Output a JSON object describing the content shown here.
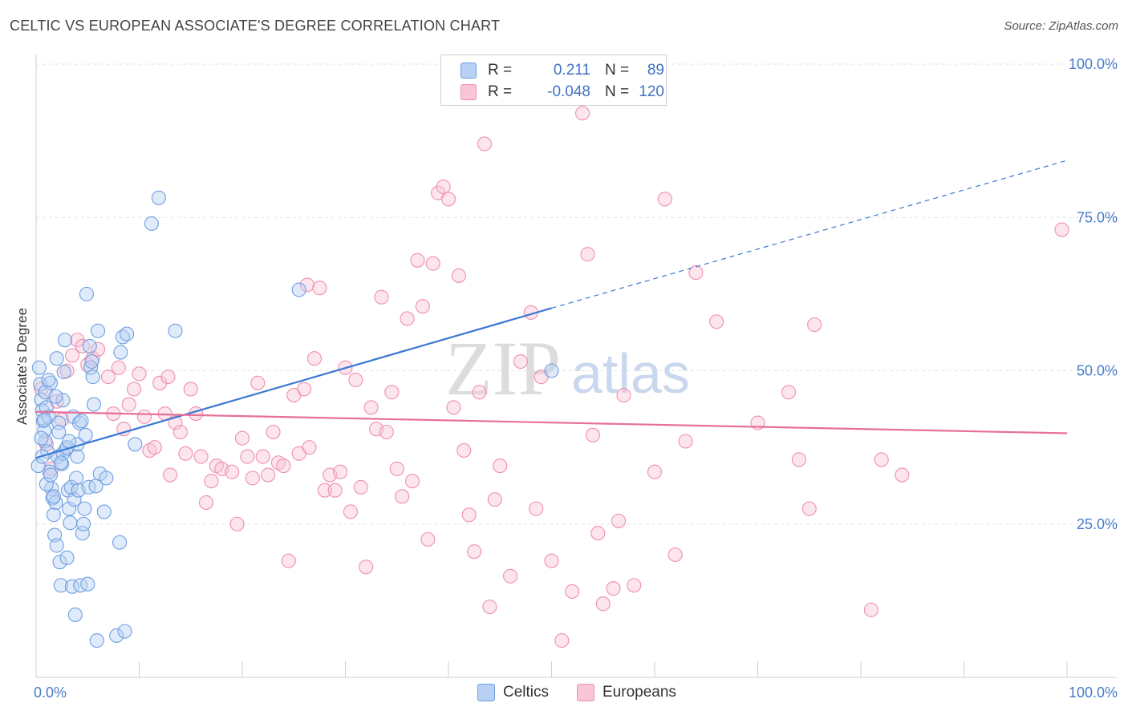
{
  "header": {
    "title": "CELTIC VS EUROPEAN ASSOCIATE'S DEGREE CORRELATION CHART",
    "source": "Source: ZipAtlas.com"
  },
  "watermark": {
    "zip": "ZIP",
    "atlas": "atlas"
  },
  "legend": {
    "rows": [
      {
        "r_label": "R =",
        "r_value": "0.211",
        "n_label": "N =",
        "n_value": "89",
        "color": "#6f9fe0",
        "fill": "#b8d0f3"
      },
      {
        "r_label": "R =",
        "r_value": "-0.048",
        "n_label": "N =",
        "n_value": "120",
        "color": "#ee8fb0",
        "fill": "#f8c6d7"
      }
    ]
  },
  "bottom_legend": [
    {
      "label": "Celtics",
      "color": "#6f9fe0",
      "fill": "#b8d0f3"
    },
    {
      "label": "Europeans",
      "color": "#ee8fb0",
      "fill": "#f8c6d7"
    }
  ],
  "chart_data": {
    "type": "scatter",
    "title": "CELTIC VS EUROPEAN ASSOCIATE'S DEGREE CORRELATION CHART",
    "xlabel": "",
    "ylabel": "Associate's Degree",
    "xlim": [
      0,
      100
    ],
    "ylim": [
      0,
      100
    ],
    "x_tick_labels": [
      "0.0%",
      "100.0%"
    ],
    "y_ticks": [
      25,
      50,
      75,
      100
    ],
    "y_tick_labels": [
      "25.0%",
      "50.0%",
      "75.0%",
      "100.0%"
    ],
    "grid": true,
    "colors": {
      "celtics": "#3a78d4",
      "europeans": "#e86f99"
    },
    "series": [
      {
        "name": "Celtics",
        "r": 0.211,
        "n": 89,
        "trend": {
          "x0": 0,
          "y0": 35.8,
          "x1": 50,
          "y1": 60.2,
          "dash_to_x": 100,
          "dash_to_y": 84.3
        },
        "points": [
          [
            0.3,
            50.5
          ],
          [
            0.4,
            47.8
          ],
          [
            0.5,
            45.3
          ],
          [
            0.6,
            43.5
          ],
          [
            0.7,
            41.8
          ],
          [
            0.8,
            40.2
          ],
          [
            0.9,
            38.5
          ],
          [
            1.0,
            44.0
          ],
          [
            1.1,
            36.8
          ],
          [
            1.2,
            42.5
          ],
          [
            1.3,
            33.5
          ],
          [
            1.4,
            48.0
          ],
          [
            1.5,
            30.8
          ],
          [
            1.6,
            29.2
          ],
          [
            1.7,
            26.5
          ],
          [
            1.8,
            23.2
          ],
          [
            1.9,
            28.5
          ],
          [
            2.0,
            52.0
          ],
          [
            2.1,
            36.0
          ],
          [
            2.2,
            41.5
          ],
          [
            2.3,
            18.8
          ],
          [
            2.4,
            15.0
          ],
          [
            2.5,
            34.8
          ],
          [
            2.6,
            45.2
          ],
          [
            2.7,
            49.8
          ],
          [
            2.8,
            55.0
          ],
          [
            2.9,
            37.2
          ],
          [
            3.0,
            19.5
          ],
          [
            3.1,
            30.5
          ],
          [
            3.2,
            27.5
          ],
          [
            3.3,
            25.2
          ],
          [
            3.4,
            31.0
          ],
          [
            3.5,
            14.8
          ],
          [
            3.6,
            42.5
          ],
          [
            3.7,
            29.0
          ],
          [
            3.8,
            10.2
          ],
          [
            3.9,
            32.5
          ],
          [
            4.0,
            38.0
          ],
          [
            4.1,
            30.5
          ],
          [
            4.2,
            41.5
          ],
          [
            4.3,
            15.0
          ],
          [
            4.4,
            41.8
          ],
          [
            4.5,
            23.5
          ],
          [
            4.6,
            25.0
          ],
          [
            4.7,
            27.5
          ],
          [
            4.8,
            39.5
          ],
          [
            4.9,
            62.5
          ],
          [
            5.0,
            15.2
          ],
          [
            5.1,
            31.0
          ],
          [
            5.2,
            54.0
          ],
          [
            5.3,
            50.5
          ],
          [
            5.4,
            51.5
          ],
          [
            5.5,
            49.0
          ],
          [
            5.6,
            44.5
          ],
          [
            5.8,
            31.2
          ],
          [
            5.9,
            6.0
          ],
          [
            6.0,
            56.5
          ],
          [
            6.2,
            33.2
          ],
          [
            6.6,
            27.0
          ],
          [
            6.8,
            32.5
          ],
          [
            7.8,
            6.8
          ],
          [
            8.1,
            22.0
          ],
          [
            8.2,
            53.0
          ],
          [
            8.4,
            55.5
          ],
          [
            8.6,
            7.5
          ],
          [
            8.8,
            56.0
          ],
          [
            9.6,
            38.0
          ],
          [
            11.2,
            74.0
          ],
          [
            11.9,
            78.2
          ],
          [
            13.5,
            56.5
          ],
          [
            25.5,
            63.2
          ],
          [
            50.0,
            50.0
          ],
          [
            0.2,
            34.5
          ],
          [
            1.0,
            31.5
          ],
          [
            2.0,
            21.5
          ],
          [
            0.6,
            36.0
          ],
          [
            1.4,
            33.0
          ],
          [
            2.6,
            36.5
          ],
          [
            0.9,
            46.5
          ],
          [
            1.2,
            48.5
          ],
          [
            0.5,
            39.0
          ],
          [
            3.0,
            37.5
          ],
          [
            1.7,
            29.5
          ],
          [
            2.2,
            40.0
          ],
          [
            0.8,
            42.0
          ],
          [
            1.9,
            45.8
          ],
          [
            2.4,
            35.0
          ],
          [
            3.2,
            38.5
          ],
          [
            4.0,
            36.0
          ]
        ]
      },
      {
        "name": "Europeans",
        "r": -0.048,
        "n": 120,
        "trend": {
          "x0": 0,
          "y0": 43.3,
          "x1": 100,
          "y1": 39.8
        },
        "points": [
          [
            0.5,
            47.0
          ],
          [
            1.0,
            38.0
          ],
          [
            1.5,
            34.0
          ],
          [
            2.0,
            45.0
          ],
          [
            2.5,
            42.0
          ],
          [
            3.0,
            50.0
          ],
          [
            3.5,
            52.5
          ],
          [
            4.0,
            55.0
          ],
          [
            4.5,
            54.0
          ],
          [
            5.0,
            51.0
          ],
          [
            5.5,
            52.0
          ],
          [
            6.0,
            53.5
          ],
          [
            7.0,
            49.0
          ],
          [
            7.5,
            43.0
          ],
          [
            8.0,
            50.5
          ],
          [
            8.5,
            40.5
          ],
          [
            9.0,
            44.5
          ],
          [
            9.5,
            47.0
          ],
          [
            10.0,
            49.5
          ],
          [
            10.5,
            42.5
          ],
          [
            11.0,
            37.0
          ],
          [
            11.5,
            37.5
          ],
          [
            12.0,
            48.0
          ],
          [
            12.5,
            43.0
          ],
          [
            12.8,
            49.0
          ],
          [
            13.0,
            33.0
          ],
          [
            13.5,
            41.5
          ],
          [
            14.0,
            40.0
          ],
          [
            14.5,
            36.5
          ],
          [
            15.0,
            47.0
          ],
          [
            15.5,
            43.0
          ],
          [
            16.0,
            36.0
          ],
          [
            16.5,
            28.5
          ],
          [
            17.0,
            32.0
          ],
          [
            17.5,
            34.5
          ],
          [
            18.0,
            34.0
          ],
          [
            19.0,
            33.5
          ],
          [
            19.5,
            25.0
          ],
          [
            20.0,
            39.0
          ],
          [
            20.5,
            36.0
          ],
          [
            21.0,
            32.5
          ],
          [
            21.5,
            48.0
          ],
          [
            22.0,
            36.0
          ],
          [
            22.5,
            33.0
          ],
          [
            23.0,
            40.0
          ],
          [
            23.5,
            35.0
          ],
          [
            24.0,
            34.5
          ],
          [
            24.5,
            19.0
          ],
          [
            25.0,
            46.0
          ],
          [
            25.5,
            36.5
          ],
          [
            26.0,
            47.0
          ],
          [
            26.3,
            64.0
          ],
          [
            26.5,
            37.5
          ],
          [
            27.0,
            52.0
          ],
          [
            27.5,
            63.5
          ],
          [
            28.0,
            30.5
          ],
          [
            28.5,
            33.0
          ],
          [
            29.0,
            30.5
          ],
          [
            29.5,
            33.5
          ],
          [
            30.0,
            50.5
          ],
          [
            30.5,
            27.0
          ],
          [
            31.0,
            48.5
          ],
          [
            31.5,
            31.0
          ],
          [
            32.0,
            18.0
          ],
          [
            32.5,
            44.0
          ],
          [
            33.0,
            40.5
          ],
          [
            33.5,
            62.0
          ],
          [
            34.0,
            40.0
          ],
          [
            34.5,
            46.5
          ],
          [
            35.0,
            34.0
          ],
          [
            35.5,
            29.5
          ],
          [
            36.0,
            58.5
          ],
          [
            36.5,
            32.0
          ],
          [
            37.0,
            68.0
          ],
          [
            37.5,
            60.5
          ],
          [
            38.0,
            22.5
          ],
          [
            38.5,
            67.5
          ],
          [
            39.0,
            79.0
          ],
          [
            39.5,
            80.0
          ],
          [
            40.0,
            78.0
          ],
          [
            40.5,
            44.0
          ],
          [
            41.0,
            65.5
          ],
          [
            41.5,
            37.0
          ],
          [
            42.0,
            26.5
          ],
          [
            42.5,
            20.5
          ],
          [
            43.0,
            46.5
          ],
          [
            43.5,
            87.0
          ],
          [
            44.0,
            11.5
          ],
          [
            44.5,
            29.0
          ],
          [
            45.0,
            34.5
          ],
          [
            46.0,
            16.5
          ],
          [
            47.0,
            51.5
          ],
          [
            48.0,
            59.5
          ],
          [
            48.5,
            27.5
          ],
          [
            49.0,
            49.0
          ],
          [
            50.0,
            19.0
          ],
          [
            51.0,
            6.0
          ],
          [
            52.0,
            14.0
          ],
          [
            53.0,
            92.0
          ],
          [
            53.5,
            69.0
          ],
          [
            54.0,
            39.5
          ],
          [
            54.5,
            23.5
          ],
          [
            55.0,
            12.0
          ],
          [
            56.0,
            14.5
          ],
          [
            56.5,
            25.5
          ],
          [
            57.0,
            46.0
          ],
          [
            58.0,
            15.0
          ],
          [
            60.0,
            33.5
          ],
          [
            61.0,
            78.0
          ],
          [
            62.0,
            20.0
          ],
          [
            63.0,
            38.5
          ],
          [
            64.0,
            66.0
          ],
          [
            66.0,
            58.0
          ],
          [
            70.0,
            41.5
          ],
          [
            73.0,
            46.5
          ],
          [
            74.0,
            35.5
          ],
          [
            75.0,
            27.5
          ],
          [
            75.5,
            57.5
          ],
          [
            81.0,
            11.0
          ],
          [
            82.0,
            35.5
          ]
        ]
      }
    ],
    "extra_europeans": [
      [
        84.0,
        33.0
      ],
      [
        99.5,
        73.0
      ]
    ]
  }
}
